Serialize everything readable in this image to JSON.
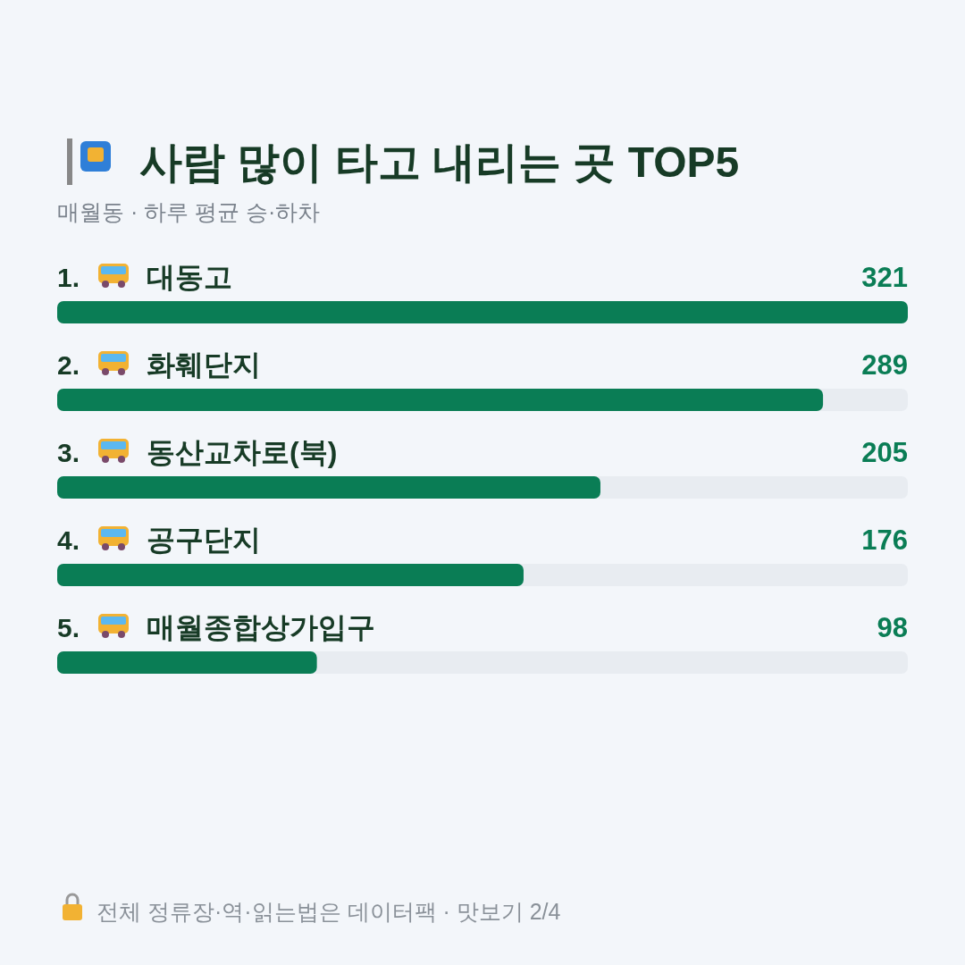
{
  "chart_data": {
    "type": "bar",
    "orientation": "horizontal",
    "title": "사람 많이 타고 내리는 곳 TOP5",
    "subtitle": "매월동 · 하루 평균 승·하차",
    "categories": [
      "1. 대동고",
      "2. 화훼단지",
      "3. 동산교차로(북)",
      "4. 공구단지",
      "5. 매월종합상가입구"
    ],
    "values": [
      321,
      289,
      205,
      176,
      98
    ],
    "color": "#0a7d55",
    "data_labels": true,
    "annotations": [
      "전체 정류장·역·읽는법은 데이터팩 · 맛보기 2/4"
    ]
  }
}
